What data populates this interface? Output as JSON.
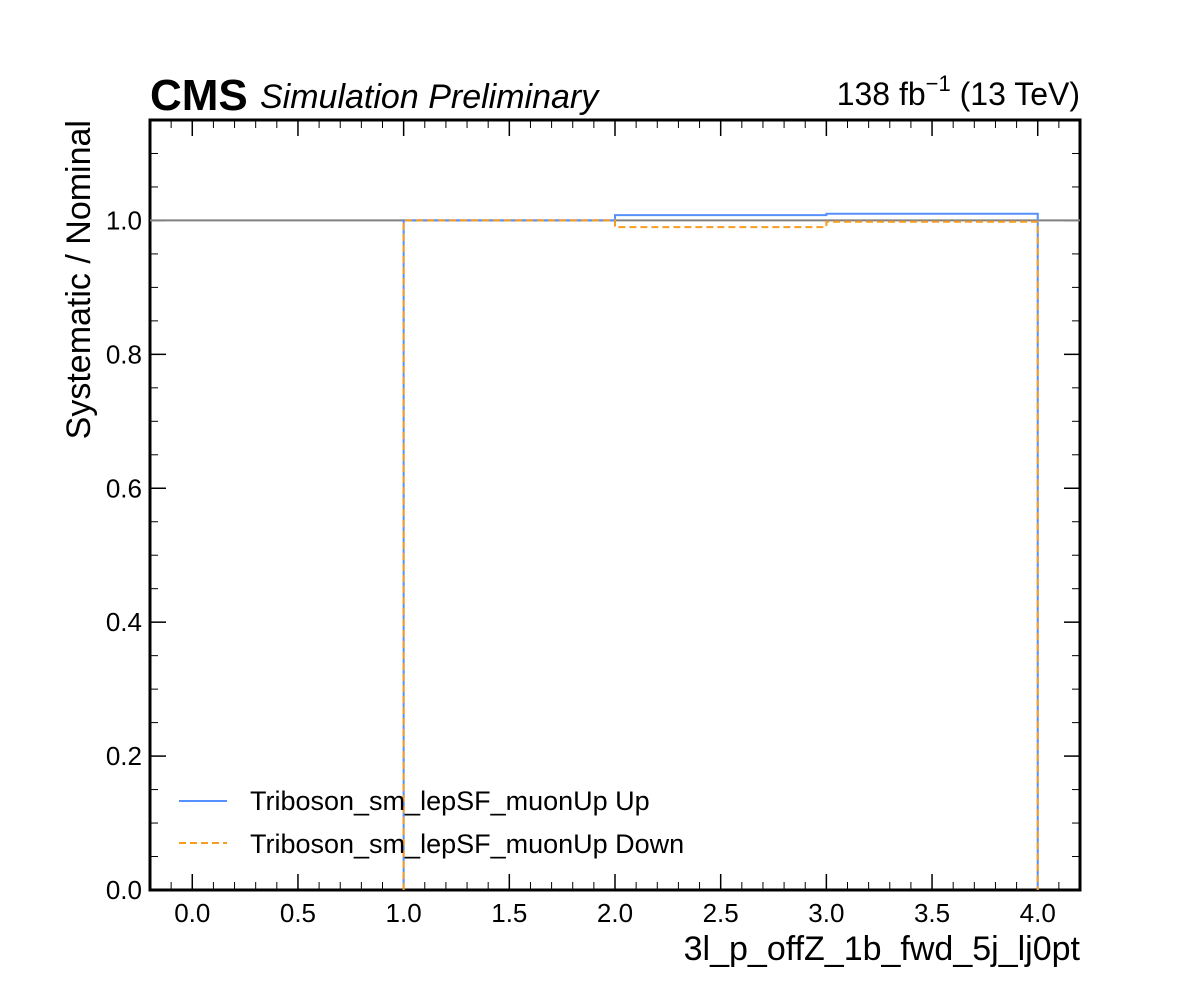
{
  "header": {
    "experiment": "CMS",
    "status": "Simulation Preliminary",
    "lumi_value": "138 fb",
    "lumi_exp": "−1",
    "energy": "(13 TeV)"
  },
  "colors": {
    "up": "#5790fc",
    "down": "#f89c20",
    "reference": "#808080"
  },
  "chart_data": {
    "type": "line",
    "style": "step-histogram",
    "xlabel": "3l_p_offZ_1b_fwd_5j_lj0pt",
    "ylabel": "Systematic / Nominal",
    "xlim": [
      -0.2,
      4.2
    ],
    "ylim": [
      0.0,
      1.15
    ],
    "xticks": [
      "0.0",
      "0.5",
      "1.0",
      "1.5",
      "2.0",
      "2.5",
      "3.0",
      "3.5",
      "4.0"
    ],
    "yticks": [
      "0.0",
      "0.2",
      "0.4",
      "0.6",
      "0.8",
      "1.0"
    ],
    "reference_line": 1.0,
    "bin_edges": [
      1,
      2,
      3,
      4
    ],
    "series": [
      {
        "name": "Triboson_sm_lepSF_muonUp Up",
        "values": [
          1.0,
          1.008,
          1.01
        ],
        "line": "solid",
        "color": "#5790fc"
      },
      {
        "name": "Triboson_sm_lepSF_muonUp Down",
        "values": [
          1.0,
          0.99,
          0.998
        ],
        "line": "dashed",
        "color": "#f89c20"
      }
    ],
    "legend_position": "lower-left",
    "grid": false
  }
}
